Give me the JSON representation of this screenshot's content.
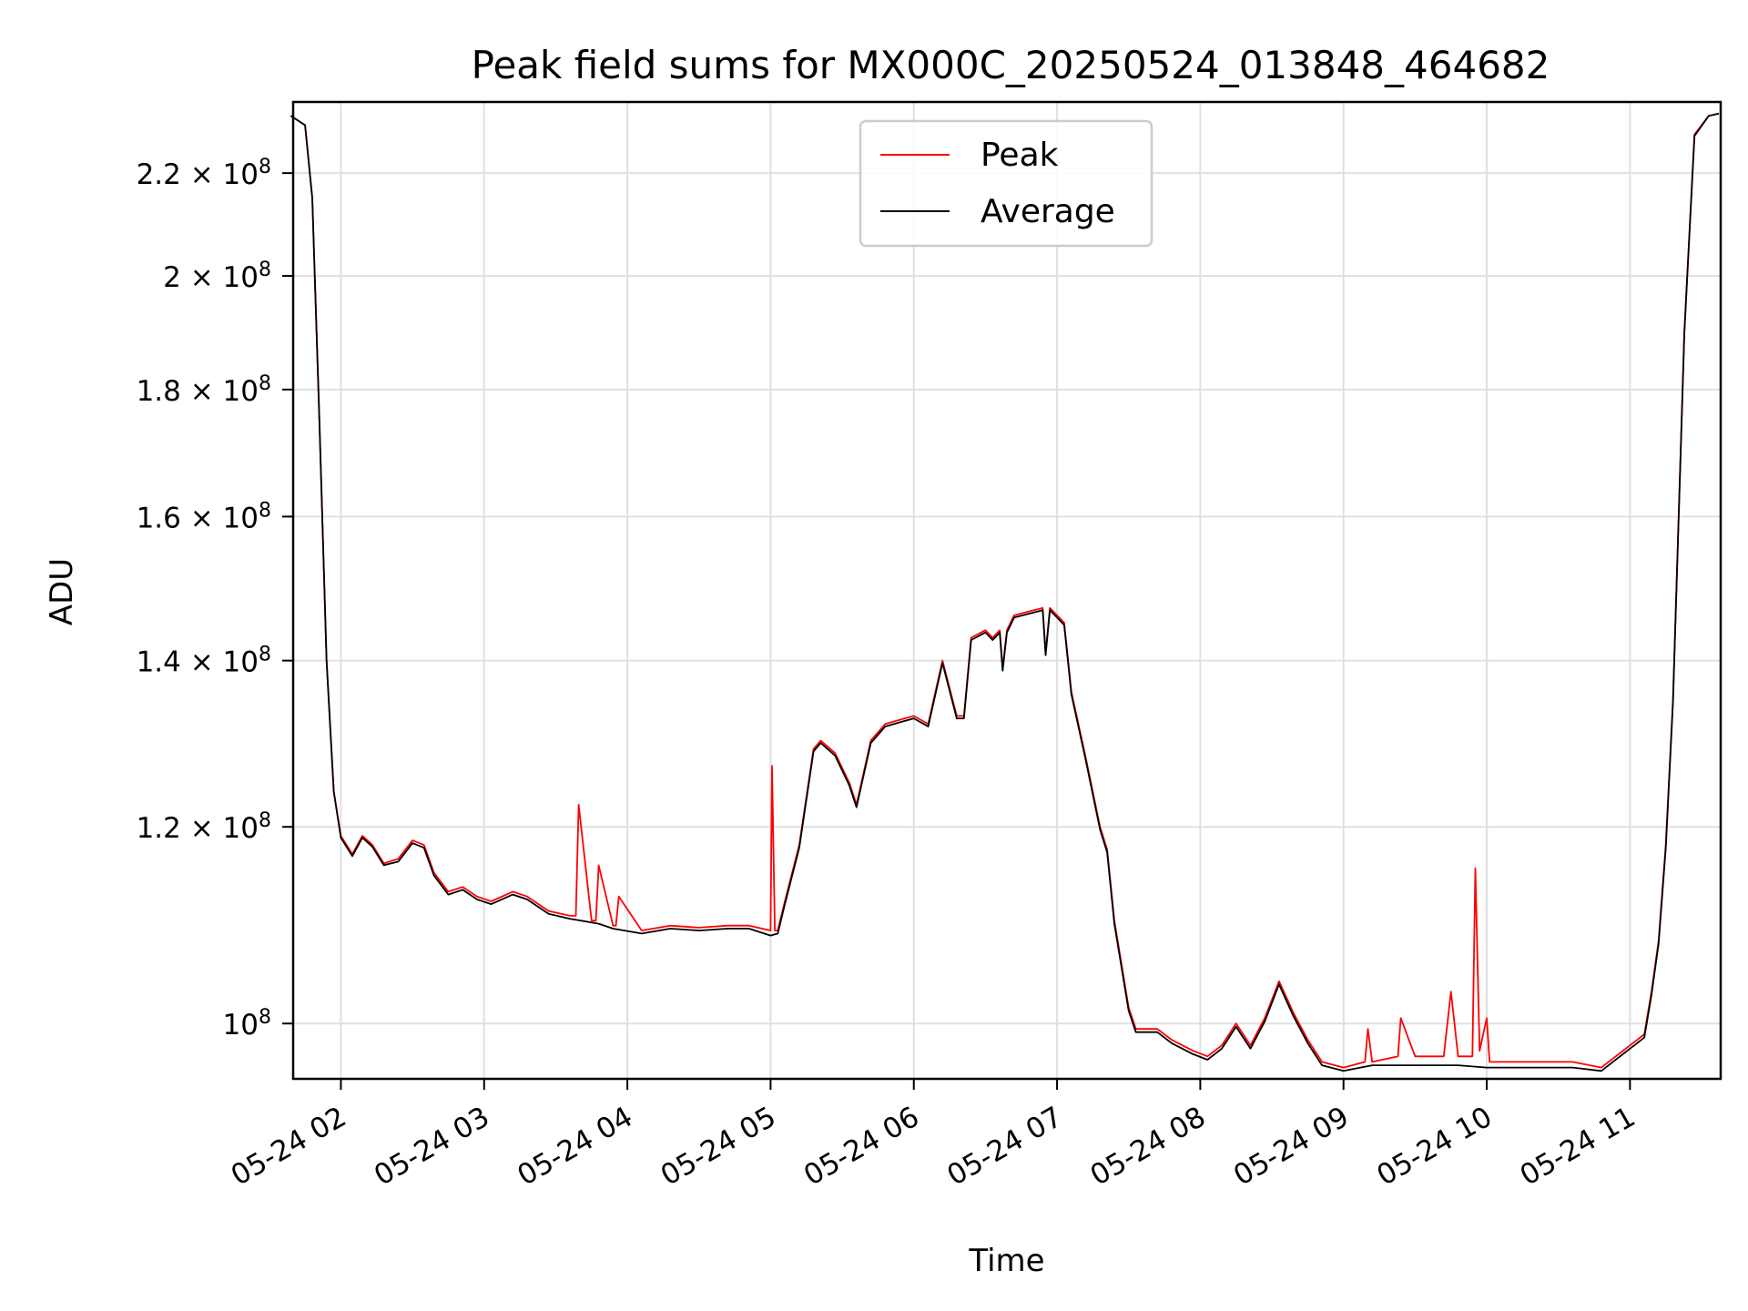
{
  "chart_data": {
    "type": "line",
    "title": "Peak field sums for MX000C_20250524_013848_464682",
    "xlabel": "Time",
    "ylabel": "ADU",
    "grid": true,
    "legend_placement": "top-center",
    "y_scale": "log",
    "xlim": [
      "05-24 01:40",
      "05-24 11:38"
    ],
    "ylim": [
      95000000,
      235000000
    ],
    "x_ticks": [
      "05-24 02",
      "05-24 03",
      "05-24 04",
      "05-24 05",
      "05-24 06",
      "05-24 07",
      "05-24 08",
      "05-24 09",
      "05-24 10",
      "05-24 11"
    ],
    "x_tick_hours": [
      2,
      3,
      4,
      5,
      6,
      7,
      8,
      9,
      10,
      11
    ],
    "y_ticks": [
      {
        "value": 100000000,
        "base": "10",
        "exp": "8",
        "mant": ""
      },
      {
        "value": 120000000,
        "base": "1.2 × 10",
        "exp": "8",
        "mant": ""
      },
      {
        "value": 140000000,
        "base": "1.4 × 10",
        "exp": "8",
        "mant": ""
      },
      {
        "value": 160000000,
        "base": "1.6 × 10",
        "exp": "8",
        "mant": ""
      },
      {
        "value": 180000000,
        "base": "1.8 × 10",
        "exp": "8",
        "mant": ""
      },
      {
        "value": 200000000,
        "base": "2 × 10",
        "exp": "8",
        "mant": ""
      },
      {
        "value": 220000000,
        "base": "2.2 × 10",
        "exp": "8",
        "mant": ""
      }
    ],
    "series": [
      {
        "name": "Peak",
        "color": "#ff0000",
        "x_hours": [
          1.65,
          1.75,
          1.8,
          1.85,
          1.9,
          1.95,
          2.0,
          2.08,
          2.15,
          2.22,
          2.3,
          2.4,
          2.5,
          2.58,
          2.65,
          2.75,
          2.85,
          2.95,
          3.05,
          3.2,
          3.3,
          3.45,
          3.6,
          3.64,
          3.66,
          3.75,
          3.78,
          3.8,
          3.9,
          3.92,
          3.94,
          4.1,
          4.3,
          4.5,
          4.7,
          4.85,
          5.0,
          5.01,
          5.03,
          5.05,
          5.1,
          5.2,
          5.3,
          5.35,
          5.45,
          5.55,
          5.6,
          5.7,
          5.8,
          5.9,
          6.0,
          6.1,
          6.2,
          6.3,
          6.35,
          6.4,
          6.5,
          6.55,
          6.6,
          6.62,
          6.65,
          6.7,
          6.8,
          6.9,
          6.92,
          6.95,
          7.0,
          7.05,
          7.1,
          7.2,
          7.3,
          7.35,
          7.4,
          7.5,
          7.55,
          7.7,
          7.8,
          7.95,
          8.05,
          8.15,
          8.25,
          8.35,
          8.45,
          8.55,
          8.65,
          8.75,
          8.85,
          9.0,
          9.15,
          9.17,
          9.2,
          9.38,
          9.4,
          9.5,
          9.7,
          9.75,
          9.8,
          9.9,
          9.92,
          9.95,
          10.0,
          10.02,
          10.05,
          10.2,
          10.4,
          10.6,
          10.8,
          11.0,
          11.1,
          11.15,
          11.2,
          11.25,
          11.3,
          11.38,
          11.45,
          11.55,
          11.62
        ],
        "y": [
          232000000,
          230000000,
          215000000,
          175000000,
          140000000,
          124000000,
          119000000,
          117000000,
          119000000,
          118000000,
          116000000,
          116500000,
          118500000,
          118000000,
          115000000,
          113000000,
          113500000,
          112500000,
          112000000,
          113000000,
          112500000,
          111000000,
          110500000,
          110500000,
          122500000,
          110000000,
          110000000,
          115800000,
          109500000,
          109500000,
          112500000,
          109000000,
          109500000,
          109300000,
          109500000,
          109500000,
          109000000,
          127000000,
          109000000,
          109000000,
          112000000,
          118000000,
          129000000,
          130000000,
          128500000,
          125000000,
          122500000,
          130000000,
          132000000,
          132500000,
          133000000,
          132000000,
          140000000,
          133000000,
          133000000,
          143000000,
          144000000,
          143000000,
          144000000,
          139000000,
          144000000,
          146000000,
          146500000,
          147000000,
          141000000,
          147000000,
          146000000,
          145000000,
          136000000,
          128000000,
          120000000,
          117500000,
          110000000,
          101500000,
          99500000,
          99500000,
          98500000,
          97500000,
          97000000,
          98000000,
          100000000,
          98000000,
          100500000,
          104000000,
          101000000,
          98500000,
          96500000,
          96000000,
          96500000,
          99500000,
          96500000,
          97000000,
          100500000,
          97000000,
          97000000,
          103000000,
          97000000,
          97000000,
          115500000,
          97500000,
          100500000,
          96500000,
          96500000,
          96500000,
          96500000,
          96500000,
          96000000,
          98000000,
          99000000,
          103000000,
          108000000,
          118000000,
          135000000,
          190000000,
          228000000,
          232000000,
          232500000
        ]
      },
      {
        "name": "Average",
        "color": "#000000",
        "x_hours": [
          1.65,
          1.75,
          1.8,
          1.85,
          1.9,
          1.95,
          2.0,
          2.08,
          2.15,
          2.22,
          2.3,
          2.4,
          2.5,
          2.58,
          2.65,
          2.75,
          2.85,
          2.95,
          3.05,
          3.2,
          3.3,
          3.45,
          3.6,
          3.8,
          3.9,
          4.1,
          4.3,
          4.5,
          4.7,
          4.85,
          5.0,
          5.05,
          5.1,
          5.2,
          5.3,
          5.35,
          5.45,
          5.55,
          5.6,
          5.7,
          5.8,
          5.9,
          6.0,
          6.1,
          6.2,
          6.3,
          6.35,
          6.4,
          6.5,
          6.55,
          6.6,
          6.62,
          6.65,
          6.7,
          6.8,
          6.9,
          6.92,
          6.95,
          7.0,
          7.05,
          7.1,
          7.2,
          7.3,
          7.35,
          7.4,
          7.5,
          7.55,
          7.7,
          7.8,
          7.95,
          8.05,
          8.15,
          8.25,
          8.35,
          8.45,
          8.55,
          8.65,
          8.75,
          8.85,
          9.0,
          9.2,
          9.5,
          9.8,
          10.0,
          10.2,
          10.4,
          10.6,
          10.8,
          11.0,
          11.1,
          11.15,
          11.2,
          11.25,
          11.3,
          11.38,
          11.45,
          11.55,
          11.62
        ],
        "y": [
          232000000,
          230000000,
          215000000,
          175000000,
          140000000,
          124000000,
          118800000,
          116800000,
          118800000,
          117800000,
          115800000,
          116200000,
          118200000,
          117700000,
          114700000,
          112700000,
          113200000,
          112200000,
          111700000,
          112700000,
          112200000,
          110700000,
          110200000,
          109700000,
          109200000,
          108700000,
          109200000,
          109000000,
          109200000,
          109200000,
          108500000,
          108700000,
          111700000,
          117700000,
          128700000,
          129700000,
          128200000,
          124700000,
          122200000,
          129700000,
          131700000,
          132200000,
          132700000,
          131700000,
          139700000,
          132700000,
          132700000,
          142700000,
          143700000,
          142700000,
          143700000,
          138700000,
          143700000,
          145700000,
          146200000,
          146700000,
          140700000,
          146700000,
          145700000,
          144700000,
          135700000,
          127700000,
          119700000,
          117200000,
          109700000,
          101200000,
          99200000,
          99200000,
          98200000,
          97200000,
          96700000,
          97700000,
          99700000,
          97700000,
          100200000,
          103700000,
          100700000,
          98200000,
          96200000,
          95700000,
          96200000,
          96200000,
          96200000,
          96000000,
          96000000,
          96000000,
          96000000,
          95700000,
          97700000,
          98700000,
          102700000,
          107700000,
          117700000,
          134700000,
          189700000,
          227700000,
          232000000,
          232500000
        ]
      }
    ]
  }
}
